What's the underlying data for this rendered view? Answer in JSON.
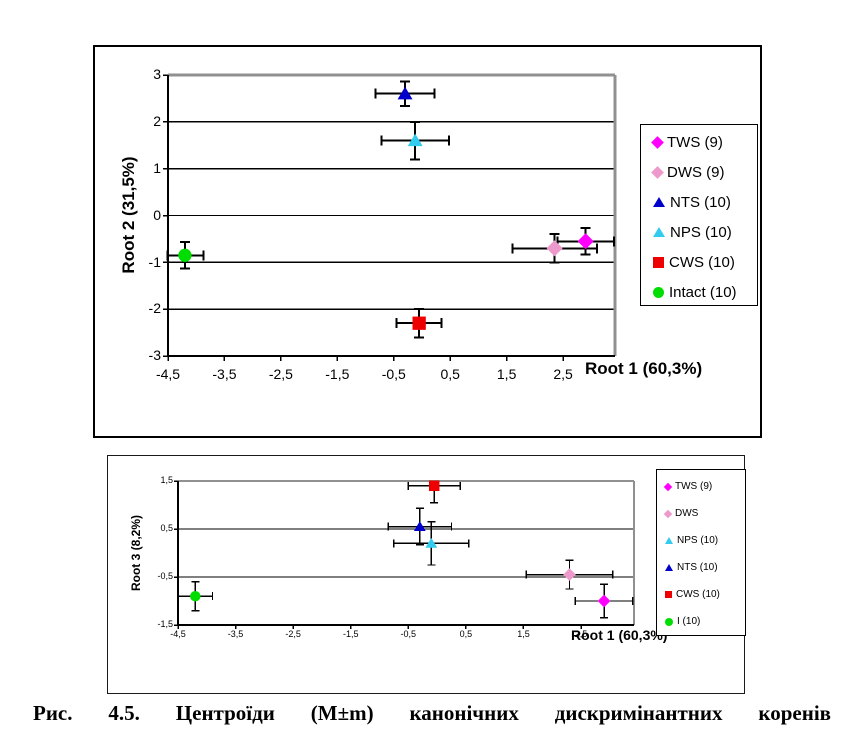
{
  "caption": "Рис. 4.5. Центроїди (M±m) канонічних дискримінантних коренів",
  "chart_data": [
    {
      "type": "scatter",
      "xlabel": "Root 1 (60,3%)",
      "ylabel": "Root 2 (31,5%)",
      "xlim": [
        -4.5,
        3.42
      ],
      "ylim": [
        -3,
        3
      ],
      "xticks": [
        -4.5,
        -3.5,
        -2.5,
        -1.5,
        -0.5,
        0.5,
        1.5,
        2.5
      ],
      "xtick_labels": [
        "-4,5",
        "-3,5",
        "-2,5",
        "-1,5",
        "-0,5",
        "0,5",
        "1,5",
        "2,5"
      ],
      "yticks": [
        3,
        2,
        1,
        0,
        -1,
        -2,
        -3
      ],
      "ytick_labels": [
        "3",
        "2",
        "1",
        "0",
        "-1",
        "-2",
        "-3"
      ],
      "grid": "horizontal",
      "legend_position": "right-inside",
      "error_bars": "both",
      "series": [
        {
          "name": "TWS (9)",
          "marker": "diamond",
          "color": "#FF00FF",
          "x": 2.9,
          "y": -0.55,
          "xerr": 0.5,
          "yerr": 0.28
        },
        {
          "name": "DWS (9)",
          "marker": "diamond",
          "color": "#EE99CC",
          "x": 2.35,
          "y": -0.7,
          "xerr": 0.75,
          "yerr": 0.3
        },
        {
          "name": "NTS (10)",
          "marker": "triangle",
          "color": "#0000CC",
          "x": -0.3,
          "y": 2.6,
          "xerr": 0.52,
          "yerr": 0.26
        },
        {
          "name": "NPS (10)",
          "marker": "triangle",
          "color": "#33CCEE",
          "x": -0.12,
          "y": 1.6,
          "xerr": 0.6,
          "yerr": 0.4
        },
        {
          "name": "CWS (10)",
          "marker": "square",
          "color": "#EE0000",
          "x": -0.05,
          "y": -2.3,
          "xerr": 0.4,
          "yerr": 0.3
        },
        {
          "name": "Intact (10)",
          "marker": "circle",
          "color": "#00DD00",
          "x": -4.2,
          "y": -0.85,
          "xerr": 0.33,
          "yerr": 0.28
        }
      ]
    },
    {
      "type": "scatter",
      "xlabel": "Root 1 (60,3%)",
      "ylabel": "Root 3 (8,2%)",
      "xlim": [
        -4.5,
        3.42
      ],
      "ylim": [
        -1.5,
        1.5
      ],
      "xticks": [
        -4.5,
        -3.5,
        -2.5,
        -1.5,
        -0.5,
        0.5,
        1.5,
        2.5
      ],
      "xtick_labels": [
        "-4,5",
        "-3,5",
        "-2,5",
        "-1,5",
        "-0,5",
        "0,5",
        "1,5",
        "2,5"
      ],
      "yticks": [
        1.5,
        0.5,
        -0.5,
        -1.5
      ],
      "ytick_labels": [
        "1,5",
        "0,5",
        "-0,5",
        "-1,5"
      ],
      "grid": "horizontal",
      "legend_position": "right-inside",
      "error_bars": "both",
      "series": [
        {
          "name": "TWS (9)",
          "marker": "diamond",
          "color": "#FF00FF",
          "x": 2.9,
          "y": -1.0,
          "xerr": 0.5,
          "yerr": 0.35
        },
        {
          "name": "DWS",
          "marker": "diamond",
          "color": "#EE99CC",
          "x": 2.3,
          "y": -0.45,
          "xerr": 0.75,
          "yerr": 0.3
        },
        {
          "name": "NPS (10)",
          "marker": "triangle",
          "color": "#33CCEE",
          "x": -0.1,
          "y": 0.2,
          "xerr": 0.65,
          "yerr": 0.45
        },
        {
          "name": "NTS (10)",
          "marker": "triangle",
          "color": "#0000CC",
          "x": -0.3,
          "y": 0.55,
          "xerr": 0.55,
          "yerr": 0.38
        },
        {
          "name": "CWS (10)",
          "marker": "square",
          "color": "#EE0000",
          "x": -0.05,
          "y": 1.4,
          "xerr": 0.45,
          "yerr": 0.35
        },
        {
          "name": "I (10)",
          "marker": "circle",
          "color": "#00DD00",
          "x": -4.2,
          "y": -0.9,
          "xerr": 0.3,
          "yerr": 0.3
        }
      ]
    }
  ],
  "colors": {
    "axis": "#000000",
    "grid": "#000000",
    "plot_top_right_border": "#909090",
    "background": "#ffffff"
  }
}
